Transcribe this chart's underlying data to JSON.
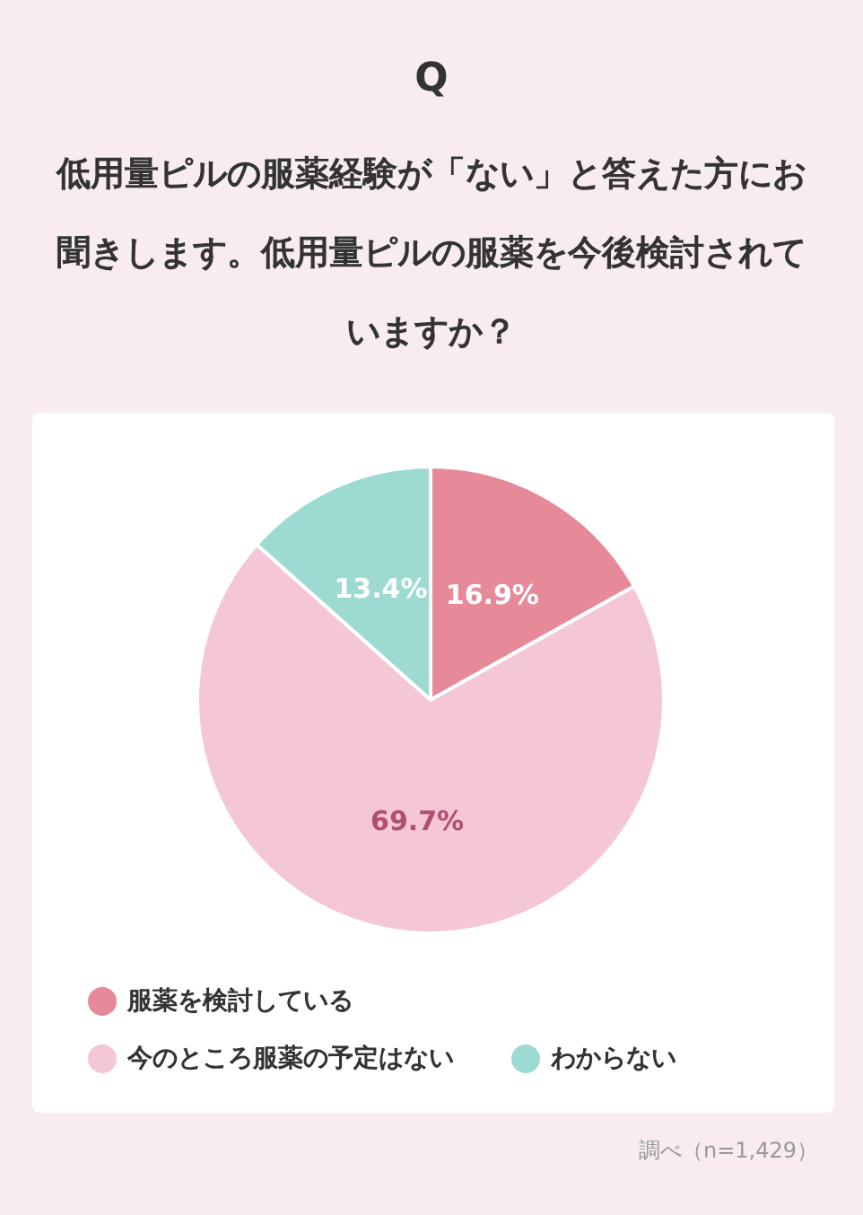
{
  "chart_data": {
    "type": "pie",
    "title": "Q",
    "subtitle": "低用量ピルの服薬経験が「ない」と答えた方にお聞きします。低用量ピルの服薬を今後検討されていますか？",
    "categories": [
      "服薬を検討している",
      "今のところ服薬の予定はない",
      "わからない"
    ],
    "values": [
      16.9,
      69.7,
      13.4
    ],
    "colors": [
      "#e68a9a",
      "#f4c6d6",
      "#9ddbd2"
    ],
    "value_labels": [
      "16.9%",
      "69.7%",
      "13.4%"
    ],
    "legend": "bottom",
    "annotations": [
      "調べ（n=1,429）"
    ]
  }
}
